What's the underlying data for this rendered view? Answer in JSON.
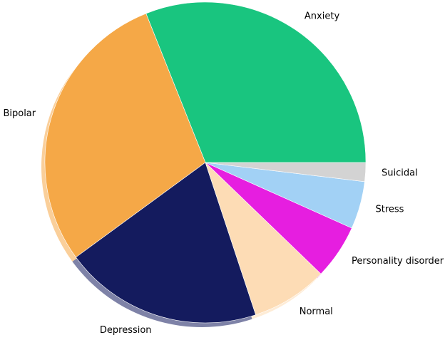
{
  "chart_data": {
    "type": "pie",
    "categories": [
      "Anxiety",
      "Bipolar",
      "Depression",
      "Normal",
      "Personality disorder",
      "Stress",
      "Suicidal"
    ],
    "values": [
      31,
      29,
      20,
      7.7,
      5.5,
      4.8,
      1.9
    ],
    "colors": [
      "#19c57f",
      "#f5a847",
      "#141b5e",
      "#fddcb5",
      "#e61ee0",
      "#a2d1f5",
      "#d3d3d3"
    ],
    "start_angle": 0,
    "direction": "counterclockwise",
    "shadow": true
  }
}
